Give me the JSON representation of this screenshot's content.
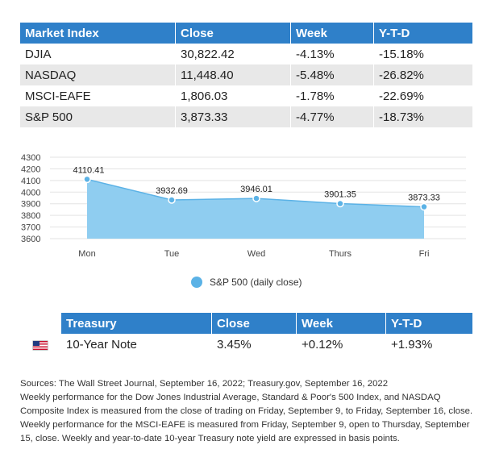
{
  "market_table": {
    "headers": [
      "Market Index",
      "Close",
      "Week",
      "Y-T-D"
    ],
    "rows": [
      [
        "DJIA",
        "30,822.42",
        "-4.13%",
        "-15.18%"
      ],
      [
        "NASDAQ",
        "11,448.40",
        "-5.48%",
        "-26.82%"
      ],
      [
        "MSCI-EAFE",
        "1,806.03",
        "-1.78%",
        "-22.69%"
      ],
      [
        "S&P 500",
        "3,873.33",
        "-4.77%",
        "-18.73%"
      ]
    ]
  },
  "chart_data": {
    "type": "area",
    "categories": [
      "Mon",
      "Tue",
      "Wed",
      "Thurs",
      "Fri"
    ],
    "series": [
      {
        "name": "S&P 500 (daily close)",
        "values": [
          4110.41,
          3932.69,
          3946.01,
          3901.35,
          3873.33
        ],
        "labels": [
          "4110.41",
          "3932.69",
          "3946.01",
          "3901.35",
          "3873.33"
        ]
      }
    ],
    "y_ticks": [
      "3600",
      "3700",
      "3800",
      "3900",
      "4000",
      "4100",
      "4200",
      "4300"
    ],
    "ylim": [
      3600,
      4300
    ],
    "grid": true,
    "legend_position": "bottom",
    "color": "#8fcdf0",
    "point_color": "#5bb2e6"
  },
  "treasury_table": {
    "headers": [
      "Treasury",
      "Close",
      "Week",
      "Y-T-D"
    ],
    "row": {
      "flag_icon": "us-flag-icon",
      "name": "10-Year Note",
      "close": "3.45%",
      "week": "+0.12%",
      "ytd": "+1.93%"
    }
  },
  "notes": [
    "Sources: The Wall Street Journal, September 16, 2022; Treasury.gov, September 16, 2022",
    "Weekly performance for the Dow Jones Industrial Average, Standard & Poor's 500 Index, and NASDAQ Composite Index is measured from the close of trading on Friday, September 9, to Friday, September 16, close. Weekly performance for the MSCI-EAFE is measured from Friday, September 9, open to Thursday, September 15, close. Weekly and year-to-date 10-year Treasury note yield are expressed in basis points."
  ]
}
